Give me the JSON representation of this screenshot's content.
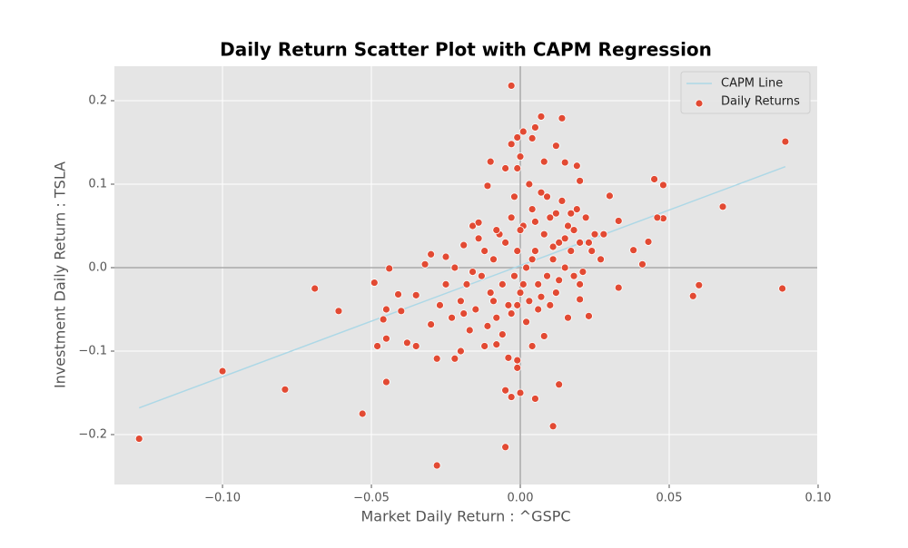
{
  "chart_data": {
    "type": "scatter",
    "title": "Daily Return Scatter Plot with CAPM Regression",
    "xlabel": "Market Daily Return : ^GSPC",
    "ylabel": "Investment Daily Return : TSLA",
    "xlim": [
      -0.1363,
      0.0997
    ],
    "ylim": [
      -0.2598,
      0.2413
    ],
    "xticks": [
      {
        "value": -0.1,
        "label": "−0.10"
      },
      {
        "value": -0.05,
        "label": "−0.05"
      },
      {
        "value": 0,
        "label": "0.00"
      },
      {
        "value": 0.05,
        "label": "0.05"
      },
      {
        "value": 0.1,
        "label": "0.10"
      }
    ],
    "yticks": [
      {
        "value": -0.2,
        "label": "−0.2"
      },
      {
        "value": -0.1,
        "label": "−0.1"
      },
      {
        "value": 0,
        "label": "0.0"
      },
      {
        "value": 0.1,
        "label": "0.1"
      },
      {
        "value": 0.2,
        "label": "0.2"
      }
    ],
    "grid": true,
    "zero_lines": true,
    "legend": "upper right",
    "series": [
      {
        "name": "CAPM Line",
        "kind": "line",
        "color": "#add8e6",
        "x": [
          -0.128,
          0.089
        ],
        "values": [
          -0.168,
          0.121
        ]
      },
      {
        "name": "Daily Returns",
        "kind": "points",
        "color": "#e24a33",
        "x": [
          -0.128,
          -0.1,
          -0.079,
          -0.069,
          -0.061,
          -0.053,
          -0.049,
          -0.048,
          -0.044,
          -0.045,
          -0.045,
          -0.046,
          -0.045,
          -0.041,
          -0.028,
          -0.005,
          0.011,
          -0.005,
          0.0,
          0.005,
          -0.003,
          0.013,
          -0.003,
          0.014,
          0.007,
          0.089,
          0.048,
          0.045,
          0.068,
          0.048,
          0.046,
          0.058,
          0.06,
          0.088,
          0.041,
          0.043,
          0.038,
          0.033,
          0.033,
          0.03,
          0.023,
          0.001,
          0.004,
          -0.003,
          0.012,
          -0.001,
          0.005,
          0.008,
          0.015,
          0.019,
          -0.01,
          -0.005,
          -0.001,
          0.0,
          -0.011,
          0.02,
          -0.035,
          -0.038,
          -0.03,
          -0.028,
          -0.022,
          -0.02,
          -0.012,
          -0.008,
          -0.004,
          -0.001,
          -0.001,
          0.004,
          0.008,
          -0.03,
          -0.032,
          -0.035,
          -0.04,
          -0.025,
          -0.019,
          -0.016,
          -0.014,
          0.016,
          0.02,
          -0.02,
          -0.018,
          -0.015,
          -0.013,
          -0.012,
          -0.01,
          -0.009,
          -0.008,
          -0.007,
          -0.006,
          -0.005,
          -0.004,
          -0.003,
          -0.002,
          -0.001,
          0.0,
          0.001,
          0.002,
          0.003,
          0.004,
          0.005,
          0.006,
          0.007,
          0.008,
          0.009,
          0.01,
          0.011,
          0.012,
          0.013,
          0.014,
          0.015,
          0.016,
          0.017,
          0.018,
          0.019,
          0.02,
          0.021,
          0.022,
          0.024,
          0.025,
          0.027,
          -0.023,
          -0.025,
          -0.027,
          -0.022,
          -0.017,
          -0.011,
          -0.006,
          0.002,
          0.006,
          0.01,
          0.003,
          -0.002,
          0.009,
          0.012,
          -0.008,
          -0.014,
          0.0,
          0.005,
          0.018,
          0.023,
          0.028,
          -0.019,
          -0.016,
          -0.003,
          0.001,
          0.007,
          0.013,
          0.015,
          0.004,
          -0.001,
          -0.009,
          0.011,
          0.017,
          0.02
        ],
        "values": [
          -0.205,
          -0.124,
          -0.146,
          -0.025,
          -0.052,
          -0.175,
          -0.018,
          -0.094,
          -0.001,
          -0.137,
          -0.085,
          -0.062,
          -0.05,
          -0.032,
          -0.237,
          -0.215,
          -0.19,
          -0.147,
          -0.15,
          -0.157,
          -0.155,
          -0.14,
          0.218,
          0.179,
          0.181,
          0.151,
          0.099,
          0.106,
          0.073,
          0.059,
          0.06,
          -0.034,
          -0.021,
          -0.025,
          0.004,
          0.031,
          0.021,
          0.056,
          -0.024,
          0.086,
          -0.058,
          0.163,
          0.155,
          0.148,
          0.146,
          0.156,
          0.168,
          0.127,
          0.126,
          0.122,
          0.127,
          0.119,
          0.119,
          0.133,
          0.098,
          0.104,
          -0.094,
          -0.09,
          -0.068,
          -0.109,
          -0.109,
          -0.1,
          -0.094,
          -0.092,
          -0.108,
          -0.111,
          -0.12,
          -0.094,
          -0.082,
          0.016,
          0.004,
          -0.033,
          -0.052,
          0.013,
          0.027,
          0.05,
          0.054,
          -0.06,
          -0.038,
          -0.04,
          -0.02,
          -0.05,
          -0.01,
          0.02,
          -0.03,
          0.01,
          -0.06,
          0.04,
          -0.02,
          0.03,
          -0.045,
          0.06,
          -0.01,
          0.02,
          -0.03,
          0.05,
          0.0,
          -0.04,
          0.07,
          0.02,
          -0.02,
          0.09,
          0.04,
          -0.01,
          0.06,
          0.01,
          -0.03,
          0.03,
          0.08,
          0.0,
          0.05,
          0.02,
          -0.01,
          0.07,
          0.03,
          -0.005,
          0.06,
          0.02,
          0.04,
          0.01,
          -0.06,
          -0.02,
          -0.045,
          0.0,
          -0.075,
          -0.07,
          -0.08,
          -0.065,
          -0.05,
          -0.045,
          0.1,
          0.085,
          0.085,
          0.065,
          0.045,
          0.035,
          0.045,
          0.055,
          0.045,
          0.03,
          0.04,
          -0.055,
          -0.005,
          -0.055,
          -0.02,
          -0.035,
          -0.015,
          0.035,
          0.01,
          -0.045,
          -0.04,
          0.025,
          0.065,
          -0.02
        ]
      }
    ]
  }
}
